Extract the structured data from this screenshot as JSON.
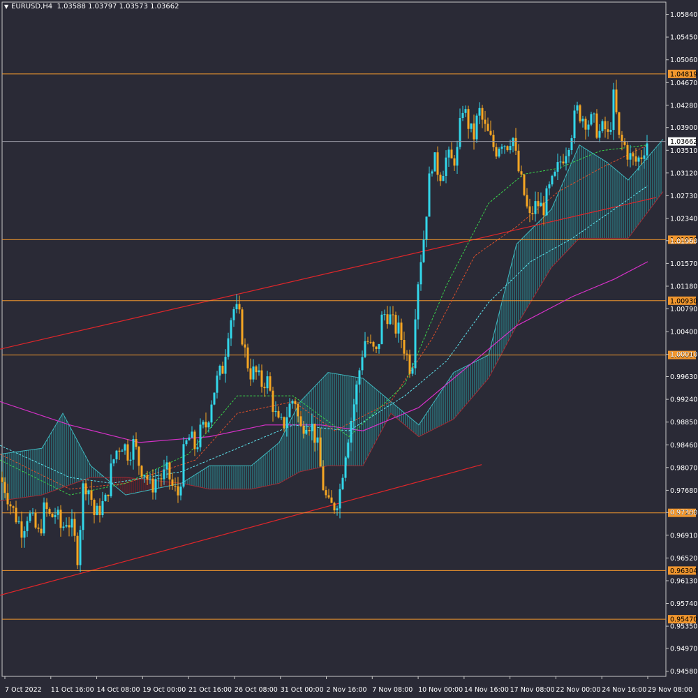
{
  "header": {
    "symbol": "EURUSD,H4",
    "ohlc": "1.03588 1.03797 1.03573 1.03662"
  },
  "chart_data": {
    "type": "candlestick",
    "ylim": [
      0.9449,
      1.0605
    ],
    "price_ticks": [
      "1.05840",
      "1.05450",
      "1.05060",
      "1.04670",
      "1.04280",
      "1.03900",
      "1.03510",
      "1.03120",
      "1.02730",
      "1.02340",
      "1.01960",
      "1.01570",
      "1.01180",
      "1.00790",
      "1.00400",
      "1.00010",
      "0.99630",
      "0.99240",
      "0.98850",
      "0.98460",
      "0.98070",
      "0.97680",
      "0.97300",
      "0.96910",
      "0.96520",
      "0.96130",
      "0.95740",
      "0.95350",
      "0.94970",
      "0.94580"
    ],
    "time_labels": [
      "7 Oct 2022",
      "11 Oct 16:00",
      "14 Oct 08:00",
      "19 Oct 00:00",
      "21 Oct 16:00",
      "26 Oct 08:00",
      "31 Oct 00:00",
      "2 Nov 16:00",
      "7 Nov 08:00",
      "10 Nov 00:00",
      "14 Nov 16:00",
      "17 Nov 08:00",
      "22 Nov 00:00",
      "24 Nov 16:00",
      "29 Nov 08:00"
    ],
    "current_price": "1.03662",
    "levels": [
      {
        "price": 1.04819,
        "label": "1.04819"
      },
      {
        "price": 1.01976,
        "label": "1.01976"
      },
      {
        "price": 1.0093,
        "label": "1.00930"
      },
      {
        "price": 1.0,
        "label": "1.00000"
      },
      {
        "price": 0.97294,
        "label": "0.97294"
      },
      {
        "price": 0.96304,
        "label": "0.96304"
      },
      {
        "price": 0.9547,
        "label": "0.95470"
      }
    ],
    "trendlines": [
      {
        "from": [
          0,
          1.001
        ],
        "to": [
          940,
          1.027
        ]
      },
      {
        "from": [
          0,
          0.9588
        ],
        "to": [
          690,
          0.9812
        ]
      }
    ],
    "anchors": [
      [
        0,
        0.979
      ],
      [
        8,
        0.977
      ],
      [
        16,
        0.974
      ],
      [
        24,
        0.972
      ],
      [
        32,
        0.97
      ],
      [
        40,
        0.973
      ],
      [
        48,
        0.971
      ],
      [
        56,
        0.969
      ],
      [
        64,
        0.974
      ],
      [
        72,
        0.972
      ],
      [
        80,
        0.973
      ],
      [
        88,
        0.97
      ],
      [
        96,
        0.972
      ],
      [
        104,
        0.97
      ],
      [
        112,
        0.965
      ],
      [
        118,
        0.977
      ],
      [
        124,
        0.978
      ],
      [
        130,
        0.976
      ],
      [
        136,
        0.972
      ],
      [
        144,
        0.974
      ],
      [
        152,
        0.975
      ],
      [
        160,
        0.981
      ],
      [
        168,
        0.984
      ],
      [
        176,
        0.985
      ],
      [
        184,
        0.983
      ],
      [
        192,
        0.985
      ],
      [
        200,
        0.981
      ],
      [
        208,
        0.98
      ],
      [
        216,
        0.977
      ],
      [
        224,
        0.979
      ],
      [
        232,
        0.979
      ],
      [
        240,
        0.98
      ],
      [
        248,
        0.977
      ],
      [
        256,
        0.976
      ],
      [
        264,
        0.984
      ],
      [
        272,
        0.986
      ],
      [
        280,
        0.984
      ],
      [
        288,
        0.987
      ],
      [
        296,
        0.988
      ],
      [
        304,
        0.993
      ],
      [
        312,
        0.996
      ],
      [
        320,
        0.998
      ],
      [
        326,
        1.004
      ],
      [
        334,
        1.008
      ],
      [
        342,
        1.007
      ],
      [
        350,
        1.001
      ],
      [
        358,
        0.997
      ],
      [
        366,
        0.997
      ],
      [
        374,
        0.995
      ],
      [
        382,
        0.996
      ],
      [
        390,
        0.992
      ],
      [
        398,
        0.988
      ],
      [
        406,
        0.988
      ],
      [
        414,
        0.991
      ],
      [
        422,
        0.993
      ],
      [
        430,
        0.987
      ],
      [
        438,
        0.989
      ],
      [
        446,
        0.988
      ],
      [
        454,
        0.985
      ],
      [
        462,
        0.978
      ],
      [
        470,
        0.974
      ],
      [
        478,
        0.974
      ],
      [
        486,
        0.976
      ],
      [
        494,
        0.983
      ],
      [
        500,
        0.987
      ],
      [
        506,
        0.991
      ],
      [
        512,
        0.995
      ],
      [
        518,
        1.0
      ],
      [
        524,
        1.003
      ],
      [
        532,
        1.001
      ],
      [
        540,
        1.0
      ],
      [
        548,
        1.007
      ],
      [
        556,
        1.007
      ],
      [
        564,
        1.005
      ],
      [
        572,
        1.004
      ],
      [
        580,
        1.001
      ],
      [
        590,
        0.997
      ],
      [
        596,
        1.01
      ],
      [
        602,
        1.016
      ],
      [
        608,
        1.021
      ],
      [
        614,
        1.029
      ],
      [
        620,
        1.034
      ],
      [
        626,
        1.032
      ],
      [
        632,
        1.031
      ],
      [
        640,
        1.034
      ],
      [
        648,
        1.033
      ],
      [
        656,
        1.035
      ],
      [
        662,
        1.043
      ],
      [
        670,
        1.04
      ],
      [
        678,
        1.037
      ],
      [
        686,
        1.042
      ],
      [
        694,
        1.039
      ],
      [
        702,
        1.037
      ],
      [
        710,
        1.035
      ],
      [
        718,
        1.037
      ],
      [
        726,
        1.036
      ],
      [
        734,
        1.038
      ],
      [
        740,
        1.033
      ],
      [
        746,
        1.03
      ],
      [
        752,
        1.027
      ],
      [
        758,
        1.023
      ],
      [
        764,
        1.025
      ],
      [
        770,
        1.026
      ],
      [
        778,
        1.025
      ],
      [
        786,
        1.028
      ],
      [
        794,
        1.03
      ],
      [
        802,
        1.033
      ],
      [
        810,
        1.035
      ],
      [
        818,
        1.038
      ],
      [
        826,
        1.042
      ],
      [
        834,
        1.041
      ],
      [
        842,
        1.04
      ],
      [
        850,
        1.04
      ],
      [
        858,
        1.038
      ],
      [
        866,
        1.039
      ],
      [
        872,
        1.037
      ],
      [
        880,
        1.045
      ],
      [
        886,
        1.037
      ],
      [
        894,
        1.036
      ],
      [
        902,
        1.034
      ],
      [
        910,
        1.033
      ],
      [
        918,
        1.034
      ],
      [
        926,
        1.0366
      ]
    ],
    "ma_magenta": [
      [
        0,
        0.992
      ],
      [
        100,
        0.988
      ],
      [
        200,
        0.985
      ],
      [
        300,
        0.986
      ],
      [
        380,
        0.988
      ],
      [
        460,
        0.988
      ],
      [
        520,
        0.987
      ],
      [
        600,
        0.991
      ],
      [
        680,
        0.999
      ],
      [
        740,
        1.005
      ],
      [
        820,
        1.01
      ],
      [
        880,
        1.013
      ],
      [
        928,
        1.016
      ]
    ],
    "ma_cyan": [
      [
        0,
        0.9845
      ],
      [
        100,
        0.979
      ],
      [
        160,
        0.978
      ],
      [
        260,
        0.98
      ],
      [
        340,
        0.984
      ],
      [
        420,
        0.988
      ],
      [
        500,
        0.987
      ],
      [
        580,
        0.993
      ],
      [
        640,
        0.999
      ],
      [
        700,
        1.009
      ],
      [
        760,
        1.016
      ],
      [
        820,
        1.02
      ],
      [
        880,
        1.025
      ],
      [
        928,
        1.029
      ]
    ],
    "ma_red": [
      [
        0,
        0.983
      ],
      [
        100,
        0.977
      ],
      [
        180,
        0.978
      ],
      [
        280,
        0.982
      ],
      [
        340,
        0.99
      ],
      [
        420,
        0.992
      ],
      [
        480,
        0.987
      ],
      [
        560,
        0.992
      ],
      [
        620,
        1.003
      ],
      [
        680,
        1.017
      ],
      [
        740,
        1.022
      ],
      [
        800,
        1.028
      ],
      [
        860,
        1.032
      ],
      [
        928,
        1.036
      ]
    ],
    "ma_green": [
      [
        0,
        0.982
      ],
      [
        100,
        0.976
      ],
      [
        180,
        0.978
      ],
      [
        270,
        0.983
      ],
      [
        340,
        0.993
      ],
      [
        420,
        0.993
      ],
      [
        500,
        0.986
      ],
      [
        580,
        0.995
      ],
      [
        640,
        1.012
      ],
      [
        700,
        1.026
      ],
      [
        750,
        1.031
      ],
      [
        800,
        1.032
      ],
      [
        860,
        1.035
      ],
      [
        928,
        1.036
      ]
    ],
    "cloud_a": [
      [
        0,
        0.983
      ],
      [
        60,
        0.984
      ],
      [
        90,
        0.99
      ],
      [
        130,
        0.981
      ],
      [
        180,
        0.976
      ],
      [
        260,
        0.978
      ],
      [
        300,
        0.981
      ],
      [
        360,
        0.981
      ],
      [
        400,
        0.985
      ],
      [
        430,
        0.992
      ],
      [
        470,
        0.997
      ],
      [
        520,
        0.996
      ],
      [
        560,
        0.992
      ],
      [
        600,
        0.988
      ],
      [
        650,
        0.997
      ],
      [
        700,
        1.0
      ],
      [
        740,
        1.019
      ],
      [
        790,
        1.025
      ],
      [
        830,
        1.036
      ],
      [
        870,
        1.033
      ],
      [
        900,
        1.03
      ],
      [
        950,
        1.037
      ]
    ],
    "cloud_b": [
      [
        0,
        0.975
      ],
      [
        60,
        0.976
      ],
      [
        130,
        0.979
      ],
      [
        180,
        0.979
      ],
      [
        260,
        0.978
      ],
      [
        300,
        0.977
      ],
      [
        360,
        0.977
      ],
      [
        400,
        0.978
      ],
      [
        430,
        0.98
      ],
      [
        470,
        0.981
      ],
      [
        520,
        0.981
      ],
      [
        560,
        0.99
      ],
      [
        600,
        0.986
      ],
      [
        650,
        0.989
      ],
      [
        700,
        0.996
      ],
      [
        740,
        1.005
      ],
      [
        790,
        1.015
      ],
      [
        830,
        1.02
      ],
      [
        870,
        1.02
      ],
      [
        900,
        1.02
      ],
      [
        950,
        1.028
      ]
    ]
  }
}
